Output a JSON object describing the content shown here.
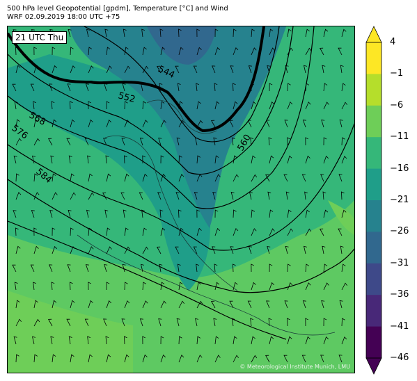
{
  "header": {
    "title": "500 hPa level Geopotential [gpdm], Temperature [°C] and Wind",
    "subtitle": "WRF 02.09.2019 18:00 UTC +75"
  },
  "map": {
    "time_label": "21 UTC Thu",
    "copyright": "© Meteorological Institute Munich, LMU",
    "contour_labels": [
      "544",
      "552",
      "560",
      "568",
      "576",
      "584"
    ],
    "fill_levels_celsius": [
      -46,
      -41,
      -36,
      -31,
      -26,
      -21,
      -16,
      -11,
      -6,
      -1,
      4
    ]
  },
  "colorbar": {
    "ticks": [
      "4",
      "−1",
      "−6",
      "−11",
      "−16",
      "−21",
      "−26",
      "−31",
      "−36",
      "−41",
      "−46"
    ],
    "colors": [
      "#fde725",
      "#b5de2b",
      "#6ece58",
      "#35b779",
      "#1f9e89",
      "#26828e",
      "#31688e",
      "#3e4989",
      "#482878",
      "#440154"
    ]
  }
}
